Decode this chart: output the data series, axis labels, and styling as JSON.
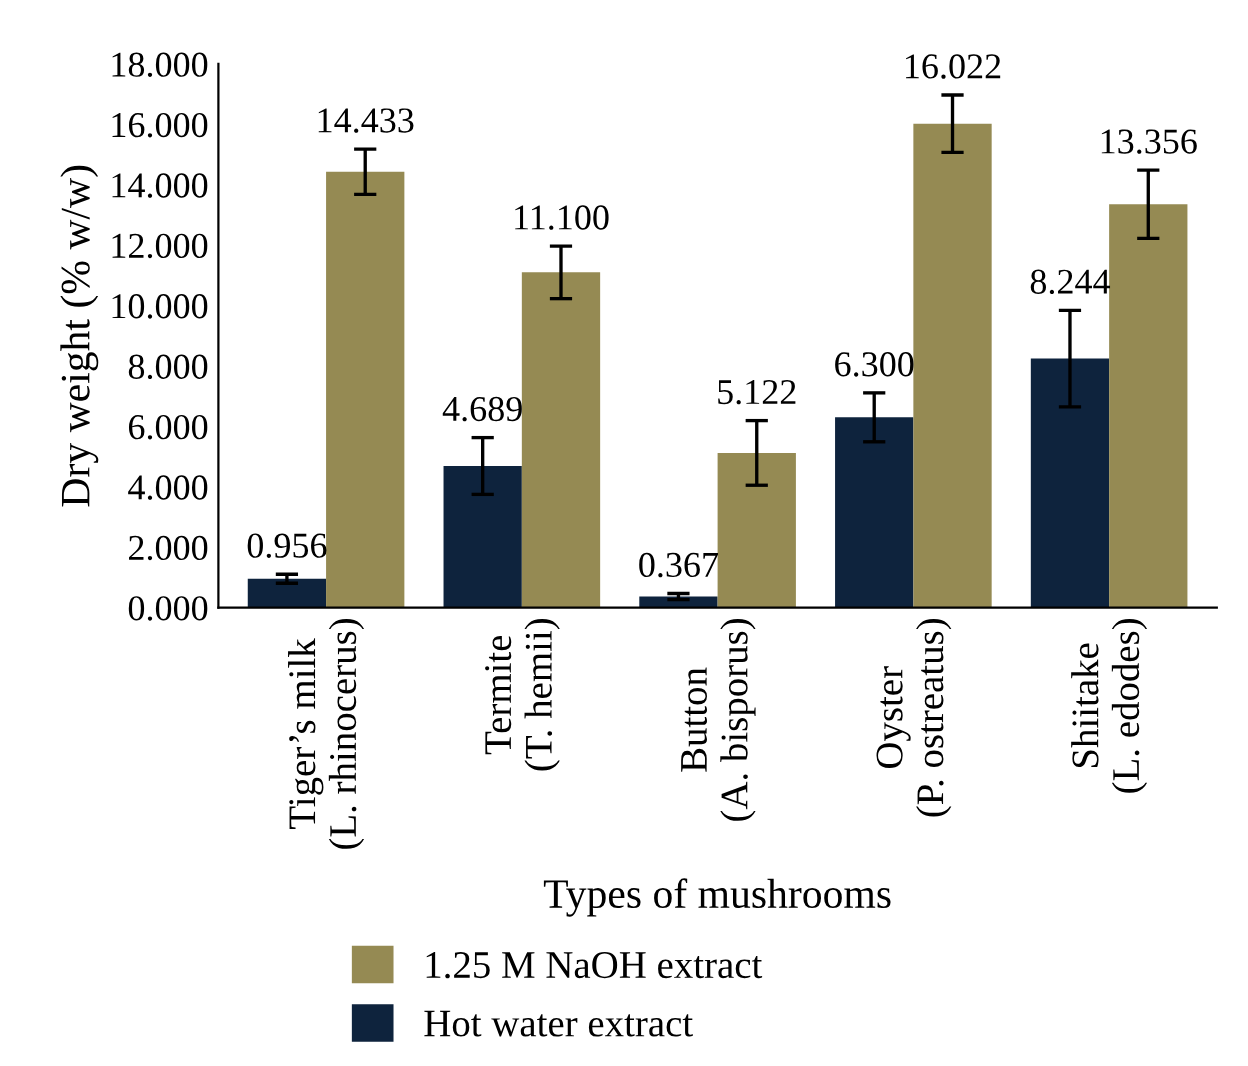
{
  "chart_data": {
    "type": "bar",
    "xlabel": "Types of mushrooms",
    "ylabel": "Dry weight (% w/w)",
    "categories": [
      "Tiger’s milk\n(L. rhinocerus)",
      "Termite\n(T. hemii)",
      "Button\n(A. bisporus)",
      "Oyster\n(P. ostreatus)",
      "Shiitake\n(L. edodes)"
    ],
    "series": [
      {
        "name": "Hot water extract",
        "color": "#0e233d",
        "values": [
          0.956,
          4.689,
          0.367,
          6.3,
          8.244
        ],
        "errors": [
          0.15,
          0.94,
          0.1,
          0.81,
          1.6
        ],
        "value_labels": [
          "0.956",
          "4.689",
          "0.367",
          "6.300",
          "8.244"
        ]
      },
      {
        "name": "1.25 M NaOH extract",
        "color": "#958a53",
        "values": [
          14.433,
          11.1,
          5.122,
          16.022,
          13.356
        ],
        "errors": [
          0.75,
          0.87,
          1.07,
          0.95,
          1.13
        ],
        "value_labels": [
          "14.433",
          "11.100",
          "5.122",
          "16.022",
          "13.356"
        ]
      }
    ],
    "ylim": [
      0,
      18
    ],
    "yticks": [
      {
        "value": 0,
        "label": "0.000"
      },
      {
        "value": 2,
        "label": "2.000"
      },
      {
        "value": 4,
        "label": "4.000"
      },
      {
        "value": 6,
        "label": "6.000"
      },
      {
        "value": 8,
        "label": "8.000"
      },
      {
        "value": 10,
        "label": "10.000"
      },
      {
        "value": 12,
        "label": "12.000"
      },
      {
        "value": 14,
        "label": "14.000"
      },
      {
        "value": 16,
        "label": "16.000"
      },
      {
        "value": 18,
        "label": "18.000"
      }
    ],
    "legend": "bottom",
    "grid": false
  }
}
